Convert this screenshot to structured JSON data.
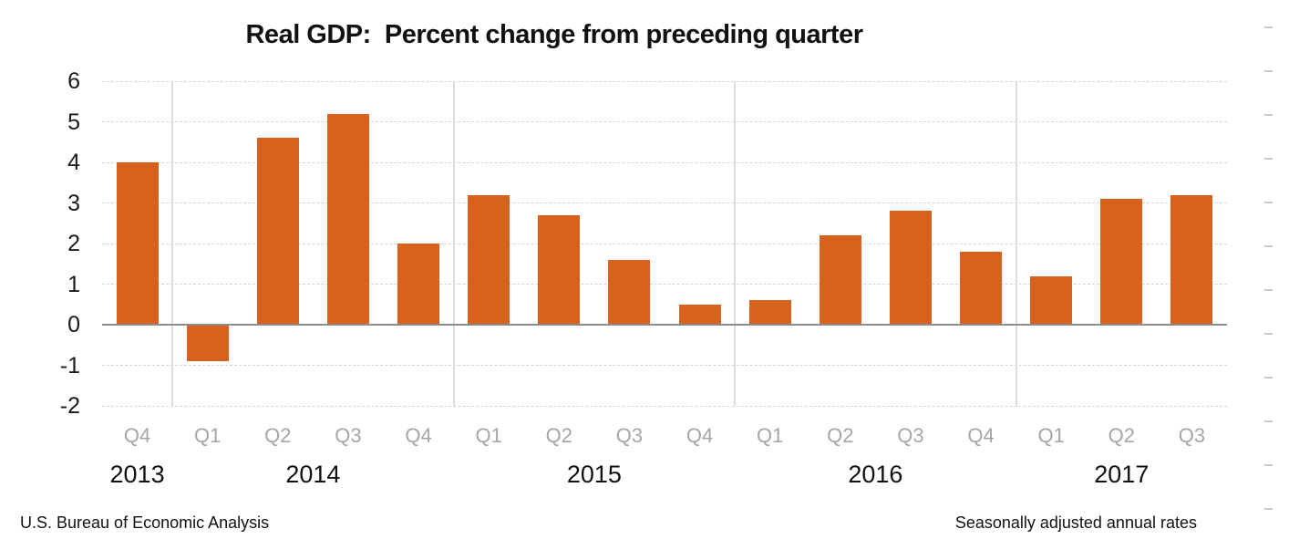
{
  "title": "Real GDP:  Percent change from preceding quarter",
  "footer": {
    "left": "U.S. Bureau of Economic Analysis",
    "right": "Seasonally adjusted annual rates"
  },
  "colors": {
    "bar": "#d6621d",
    "zero_line": "#8c8c8c",
    "gridline": "#d6d6d6",
    "year_separator": "#dddddd",
    "quarter_label": "#a6a6a6",
    "axis_label": "#1a1a1a",
    "right_tick": "#c9c9c9"
  },
  "chart_data": {
    "type": "bar",
    "title": "Real GDP:  Percent change from preceding quarter",
    "categories": [
      "Q4",
      "Q1",
      "Q2",
      "Q3",
      "Q4",
      "Q1",
      "Q2",
      "Q3",
      "Q4",
      "Q1",
      "Q2",
      "Q3",
      "Q4",
      "Q1",
      "Q2",
      "Q3"
    ],
    "values": [
      4.0,
      -0.9,
      4.6,
      5.2,
      2.0,
      3.2,
      2.7,
      1.6,
      0.5,
      0.6,
      2.2,
      2.8,
      1.8,
      1.2,
      3.1,
      3.2
    ],
    "year_groups": [
      {
        "label": "2013",
        "count": 1
      },
      {
        "label": "2014",
        "count": 4
      },
      {
        "label": "2015",
        "count": 4
      },
      {
        "label": "2016",
        "count": 4
      },
      {
        "label": "2017",
        "count": 3
      }
    ],
    "y_ticks": [
      6,
      5,
      4,
      3,
      2,
      1,
      0,
      -1,
      -2
    ],
    "ylim": [
      -2,
      6
    ],
    "xlabel": "",
    "ylabel": "",
    "grid": true,
    "legend": false,
    "right_edge_tick_count": 12
  }
}
